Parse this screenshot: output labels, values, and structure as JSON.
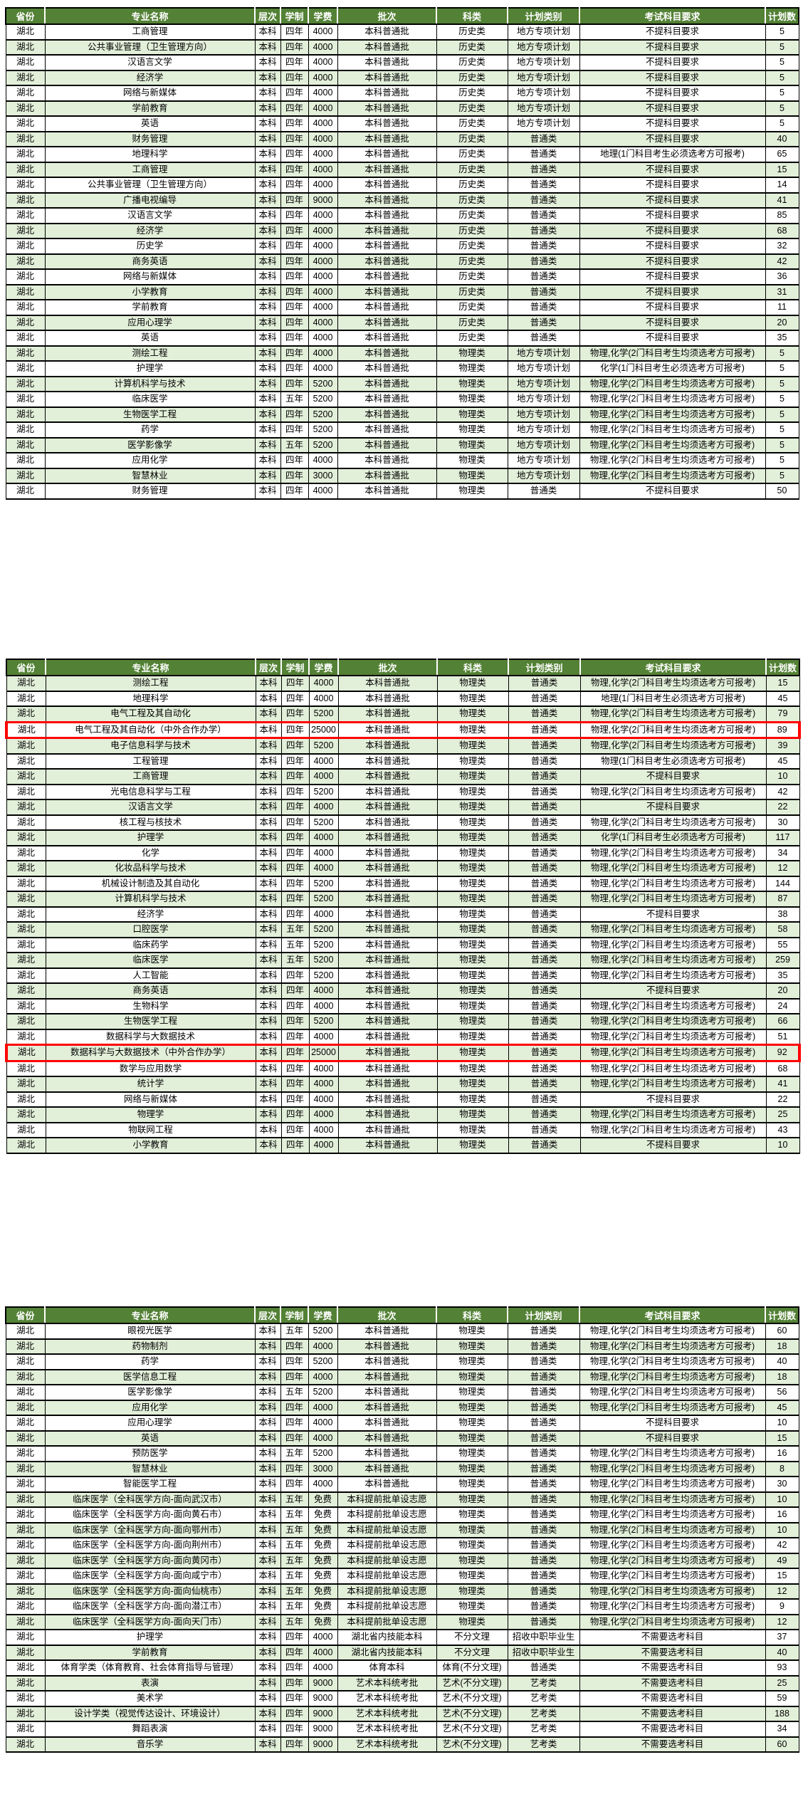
{
  "colors": {
    "header_bg": "#538135",
    "header_text": "#ffffff",
    "row_alt_bg": "#e2efd9",
    "row_bg": "#ffffff",
    "grid_border": "#000000",
    "highlight_box": "#ff0000"
  },
  "columns": [
    "省份",
    "专业名称",
    "层次",
    "学制",
    "学费",
    "批次",
    "科类",
    "计划类别",
    "考试科目要求",
    "计划数"
  ],
  "tables": [
    {
      "first_row_shade": "white",
      "highlight_rows": [],
      "rows": [
        [
          "湖北",
          "工商管理",
          "本科",
          "四年",
          "4000",
          "本科普通批",
          "历史类",
          "地方专项计划",
          "不提科目要求",
          "5"
        ],
        [
          "湖北",
          "公共事业管理（卫生管理方向）",
          "本科",
          "四年",
          "4000",
          "本科普通批",
          "历史类",
          "地方专项计划",
          "不提科目要求",
          "5"
        ],
        [
          "湖北",
          "汉语言文学",
          "本科",
          "四年",
          "4000",
          "本科普通批",
          "历史类",
          "地方专项计划",
          "不提科目要求",
          "5"
        ],
        [
          "湖北",
          "经济学",
          "本科",
          "四年",
          "4000",
          "本科普通批",
          "历史类",
          "地方专项计划",
          "不提科目要求",
          "5"
        ],
        [
          "湖北",
          "网络与新媒体",
          "本科",
          "四年",
          "4000",
          "本科普通批",
          "历史类",
          "地方专项计划",
          "不提科目要求",
          "5"
        ],
        [
          "湖北",
          "学前教育",
          "本科",
          "四年",
          "4000",
          "本科普通批",
          "历史类",
          "地方专项计划",
          "不提科目要求",
          "5"
        ],
        [
          "湖北",
          "英语",
          "本科",
          "四年",
          "4000",
          "本科普通批",
          "历史类",
          "地方专项计划",
          "不提科目要求",
          "5"
        ],
        [
          "湖北",
          "财务管理",
          "本科",
          "四年",
          "4000",
          "本科普通批",
          "历史类",
          "普通类",
          "不提科目要求",
          "40"
        ],
        [
          "湖北",
          "地理科学",
          "本科",
          "四年",
          "4000",
          "本科普通批",
          "历史类",
          "普通类",
          "地理(1门科目考生必须选考方可报考)",
          "65"
        ],
        [
          "湖北",
          "工商管理",
          "本科",
          "四年",
          "4000",
          "本科普通批",
          "历史类",
          "普通类",
          "不提科目要求",
          "15"
        ],
        [
          "湖北",
          "公共事业管理（卫生管理方向）",
          "本科",
          "四年",
          "4000",
          "本科普通批",
          "历史类",
          "普通类",
          "不提科目要求",
          "14"
        ],
        [
          "湖北",
          "广播电视编导",
          "本科",
          "四年",
          "9000",
          "本科普通批",
          "历史类",
          "普通类",
          "不提科目要求",
          "41"
        ],
        [
          "湖北",
          "汉语言文学",
          "本科",
          "四年",
          "4000",
          "本科普通批",
          "历史类",
          "普通类",
          "不提科目要求",
          "85"
        ],
        [
          "湖北",
          "经济学",
          "本科",
          "四年",
          "4000",
          "本科普通批",
          "历史类",
          "普通类",
          "不提科目要求",
          "68"
        ],
        [
          "湖北",
          "历史学",
          "本科",
          "四年",
          "4000",
          "本科普通批",
          "历史类",
          "普通类",
          "不提科目要求",
          "32"
        ],
        [
          "湖北",
          "商务英语",
          "本科",
          "四年",
          "4000",
          "本科普通批",
          "历史类",
          "普通类",
          "不提科目要求",
          "42"
        ],
        [
          "湖北",
          "网络与新媒体",
          "本科",
          "四年",
          "4000",
          "本科普通批",
          "历史类",
          "普通类",
          "不提科目要求",
          "36"
        ],
        [
          "湖北",
          "小学教育",
          "本科",
          "四年",
          "4000",
          "本科普通批",
          "历史类",
          "普通类",
          "不提科目要求",
          "31"
        ],
        [
          "湖北",
          "学前教育",
          "本科",
          "四年",
          "4000",
          "本科普通批",
          "历史类",
          "普通类",
          "不提科目要求",
          "11"
        ],
        [
          "湖北",
          "应用心理学",
          "本科",
          "四年",
          "4000",
          "本科普通批",
          "历史类",
          "普通类",
          "不提科目要求",
          "20"
        ],
        [
          "湖北",
          "英语",
          "本科",
          "四年",
          "4000",
          "本科普通批",
          "历史类",
          "普通类",
          "不提科目要求",
          "35"
        ],
        [
          "湖北",
          "测绘工程",
          "本科",
          "四年",
          "4000",
          "本科普通批",
          "物理类",
          "地方专项计划",
          "物理,化学(2门科目考生均须选考方可报考)",
          "5"
        ],
        [
          "湖北",
          "护理学",
          "本科",
          "四年",
          "4000",
          "本科普通批",
          "物理类",
          "地方专项计划",
          "化学(1门科目考生必须选考方可报考)",
          "5"
        ],
        [
          "湖北",
          "计算机科学与技术",
          "本科",
          "四年",
          "5200",
          "本科普通批",
          "物理类",
          "地方专项计划",
          "物理,化学(2门科目考生均须选考方可报考)",
          "5"
        ],
        [
          "湖北",
          "临床医学",
          "本科",
          "五年",
          "5200",
          "本科普通批",
          "物理类",
          "地方专项计划",
          "物理,化学(2门科目考生均须选考方可报考)",
          "5"
        ],
        [
          "湖北",
          "生物医学工程",
          "本科",
          "四年",
          "5200",
          "本科普通批",
          "物理类",
          "地方专项计划",
          "物理,化学(2门科目考生均须选考方可报考)",
          "5"
        ],
        [
          "湖北",
          "药学",
          "本科",
          "四年",
          "5200",
          "本科普通批",
          "物理类",
          "地方专项计划",
          "物理,化学(2门科目考生均须选考方可报考)",
          "5"
        ],
        [
          "湖北",
          "医学影像学",
          "本科",
          "五年",
          "5200",
          "本科普通批",
          "物理类",
          "地方专项计划",
          "物理,化学(2门科目考生均须选考方可报考)",
          "5"
        ],
        [
          "湖北",
          "应用化学",
          "本科",
          "四年",
          "4000",
          "本科普通批",
          "物理类",
          "地方专项计划",
          "物理,化学(2门科目考生均须选考方可报考)",
          "5"
        ],
        [
          "湖北",
          "智慧林业",
          "本科",
          "四年",
          "3000",
          "本科普通批",
          "物理类",
          "地方专项计划",
          "物理,化学(2门科目考生均须选考方可报考)",
          "5"
        ],
        [
          "湖北",
          "财务管理",
          "本科",
          "四年",
          "4000",
          "本科普通批",
          "物理类",
          "普通类",
          "不提科目要求",
          "50"
        ]
      ]
    },
    {
      "first_row_shade": "green",
      "highlight_rows": [
        3,
        24
      ],
      "rows": [
        [
          "湖北",
          "测绘工程",
          "本科",
          "四年",
          "4000",
          "本科普通批",
          "物理类",
          "普通类",
          "物理,化学(2门科目考生均须选考方可报考)",
          "15"
        ],
        [
          "湖北",
          "地理科学",
          "本科",
          "四年",
          "4000",
          "本科普通批",
          "物理类",
          "普通类",
          "地理(1门科目考生必须选考方可报考)",
          "45"
        ],
        [
          "湖北",
          "电气工程及其自动化",
          "本科",
          "四年",
          "5200",
          "本科普通批",
          "物理类",
          "普通类",
          "物理,化学(2门科目考生均须选考方可报考)",
          "79"
        ],
        [
          "湖北",
          "电气工程及其自动化（中外合作办学）",
          "本科",
          "四年",
          "25000",
          "本科普通批",
          "物理类",
          "普通类",
          "物理,化学(2门科目考生均须选考方可报考)",
          "89"
        ],
        [
          "湖北",
          "电子信息科学与技术",
          "本科",
          "四年",
          "5200",
          "本科普通批",
          "物理类",
          "普通类",
          "物理,化学(2门科目考生均须选考方可报考)",
          "39"
        ],
        [
          "湖北",
          "工程管理",
          "本科",
          "四年",
          "4000",
          "本科普通批",
          "物理类",
          "普通类",
          "物理(1门科目考生必须选考方可报考)",
          "45"
        ],
        [
          "湖北",
          "工商管理",
          "本科",
          "四年",
          "4000",
          "本科普通批",
          "物理类",
          "普通类",
          "不提科目要求",
          "10"
        ],
        [
          "湖北",
          "光电信息科学与工程",
          "本科",
          "四年",
          "5200",
          "本科普通批",
          "物理类",
          "普通类",
          "物理,化学(2门科目考生均须选考方可报考)",
          "42"
        ],
        [
          "湖北",
          "汉语言文学",
          "本科",
          "四年",
          "4000",
          "本科普通批",
          "物理类",
          "普通类",
          "不提科目要求",
          "22"
        ],
        [
          "湖北",
          "核工程与核技术",
          "本科",
          "四年",
          "5200",
          "本科普通批",
          "物理类",
          "普通类",
          "物理,化学(2门科目考生均须选考方可报考)",
          "30"
        ],
        [
          "湖北",
          "护理学",
          "本科",
          "四年",
          "4000",
          "本科普通批",
          "物理类",
          "普通类",
          "化学(1门科目考生必须选考方可报考)",
          "117"
        ],
        [
          "湖北",
          "化学",
          "本科",
          "四年",
          "4000",
          "本科普通批",
          "物理类",
          "普通类",
          "物理,化学(2门科目考生均须选考方可报考)",
          "34"
        ],
        [
          "湖北",
          "化妆品科学与技术",
          "本科",
          "四年",
          "4000",
          "本科普通批",
          "物理类",
          "普通类",
          "物理,化学(2门科目考生均须选考方可报考)",
          "12"
        ],
        [
          "湖北",
          "机械设计制造及其自动化",
          "本科",
          "四年",
          "5200",
          "本科普通批",
          "物理类",
          "普通类",
          "物理,化学(2门科目考生均须选考方可报考)",
          "144"
        ],
        [
          "湖北",
          "计算机科学与技术",
          "本科",
          "四年",
          "5200",
          "本科普通批",
          "物理类",
          "普通类",
          "物理,化学(2门科目考生均须选考方可报考)",
          "87"
        ],
        [
          "湖北",
          "经济学",
          "本科",
          "四年",
          "4000",
          "本科普通批",
          "物理类",
          "普通类",
          "不提科目要求",
          "38"
        ],
        [
          "湖北",
          "口腔医学",
          "本科",
          "五年",
          "5200",
          "本科普通批",
          "物理类",
          "普通类",
          "物理,化学(2门科目考生均须选考方可报考)",
          "58"
        ],
        [
          "湖北",
          "临床药学",
          "本科",
          "五年",
          "5200",
          "本科普通批",
          "物理类",
          "普通类",
          "物理,化学(2门科目考生均须选考方可报考)",
          "55"
        ],
        [
          "湖北",
          "临床医学",
          "本科",
          "五年",
          "5200",
          "本科普通批",
          "物理类",
          "普通类",
          "物理,化学(2门科目考生均须选考方可报考)",
          "259"
        ],
        [
          "湖北",
          "人工智能",
          "本科",
          "四年",
          "5200",
          "本科普通批",
          "物理类",
          "普通类",
          "物理,化学(2门科目考生均须选考方可报考)",
          "35"
        ],
        [
          "湖北",
          "商务英语",
          "本科",
          "四年",
          "4000",
          "本科普通批",
          "物理类",
          "普通类",
          "不提科目要求",
          "20"
        ],
        [
          "湖北",
          "生物科学",
          "本科",
          "四年",
          "4000",
          "本科普通批",
          "物理类",
          "普通类",
          "物理,化学(2门科目考生均须选考方可报考)",
          "24"
        ],
        [
          "湖北",
          "生物医学工程",
          "本科",
          "四年",
          "5200",
          "本科普通批",
          "物理类",
          "普通类",
          "物理,化学(2门科目考生均须选考方可报考)",
          "66"
        ],
        [
          "湖北",
          "数据科学与大数据技术",
          "本科",
          "四年",
          "4000",
          "本科普通批",
          "物理类",
          "普通类",
          "物理,化学(2门科目考生均须选考方可报考)",
          "51"
        ],
        [
          "湖北",
          "数据科学与大数据技术（中外合作办学）",
          "本科",
          "四年",
          "25000",
          "本科普通批",
          "物理类",
          "普通类",
          "物理,化学(2门科目考生均须选考方可报考)",
          "92"
        ],
        [
          "湖北",
          "数学与应用数学",
          "本科",
          "四年",
          "4000",
          "本科普通批",
          "物理类",
          "普通类",
          "物理,化学(2门科目考生均须选考方可报考)",
          "68"
        ],
        [
          "湖北",
          "统计学",
          "本科",
          "四年",
          "4000",
          "本科普通批",
          "物理类",
          "普通类",
          "物理,化学(2门科目考生均须选考方可报考)",
          "41"
        ],
        [
          "湖北",
          "网络与新媒体",
          "本科",
          "四年",
          "4000",
          "本科普通批",
          "物理类",
          "普通类",
          "不提科目要求",
          "22"
        ],
        [
          "湖北",
          "物理学",
          "本科",
          "四年",
          "4000",
          "本科普通批",
          "物理类",
          "普通类",
          "物理,化学(2门科目考生均须选考方可报考)",
          "25"
        ],
        [
          "湖北",
          "物联网工程",
          "本科",
          "四年",
          "4000",
          "本科普通批",
          "物理类",
          "普通类",
          "物理,化学(2门科目考生均须选考方可报考)",
          "43"
        ],
        [
          "湖北",
          "小学教育",
          "本科",
          "四年",
          "4000",
          "本科普通批",
          "物理类",
          "普通类",
          "不提科目要求",
          "10"
        ]
      ]
    },
    {
      "first_row_shade": "white",
      "highlight_rows": [],
      "rows": [
        [
          "湖北",
          "眼视光医学",
          "本科",
          "五年",
          "5200",
          "本科普通批",
          "物理类",
          "普通类",
          "物理,化学(2门科目考生均须选考方可报考)",
          "60"
        ],
        [
          "湖北",
          "药物制剂",
          "本科",
          "四年",
          "4000",
          "本科普通批",
          "物理类",
          "普通类",
          "物理,化学(2门科目考生均须选考方可报考)",
          "18"
        ],
        [
          "湖北",
          "药学",
          "本科",
          "四年",
          "5200",
          "本科普通批",
          "物理类",
          "普通类",
          "物理,化学(2门科目考生均须选考方可报考)",
          "40"
        ],
        [
          "湖北",
          "医学信息工程",
          "本科",
          "四年",
          "4000",
          "本科普通批",
          "物理类",
          "普通类",
          "物理,化学(2门科目考生均须选考方可报考)",
          "18"
        ],
        [
          "湖北",
          "医学影像学",
          "本科",
          "五年",
          "5200",
          "本科普通批",
          "物理类",
          "普通类",
          "物理,化学(2门科目考生均须选考方可报考)",
          "56"
        ],
        [
          "湖北",
          "应用化学",
          "本科",
          "四年",
          "4000",
          "本科普通批",
          "物理类",
          "普通类",
          "物理,化学(2门科目考生均须选考方可报考)",
          "45"
        ],
        [
          "湖北",
          "应用心理学",
          "本科",
          "四年",
          "4000",
          "本科普通批",
          "物理类",
          "普通类",
          "不提科目要求",
          "10"
        ],
        [
          "湖北",
          "英语",
          "本科",
          "四年",
          "4000",
          "本科普通批",
          "物理类",
          "普通类",
          "不提科目要求",
          "15"
        ],
        [
          "湖北",
          "预防医学",
          "本科",
          "五年",
          "5200",
          "本科普通批",
          "物理类",
          "普通类",
          "物理,化学(2门科目考生均须选考方可报考)",
          "16"
        ],
        [
          "湖北",
          "智慧林业",
          "本科",
          "四年",
          "3000",
          "本科普通批",
          "物理类",
          "普通类",
          "物理,化学(2门科目考生均须选考方可报考)",
          "8"
        ],
        [
          "湖北",
          "智能医学工程",
          "本科",
          "四年",
          "4000",
          "本科普通批",
          "物理类",
          "普通类",
          "物理,化学(2门科目考生均须选考方可报考)",
          "30"
        ],
        [
          "湖北",
          "临床医学（全科医学方向-面向武汉市）",
          "本科",
          "五年",
          "免费",
          "本科提前批单设志愿",
          "物理类",
          "普通类",
          "物理,化学(2门科目考生均须选考方可报考)",
          "10"
        ],
        [
          "湖北",
          "临床医学（全科医学方向-面向黄石市）",
          "本科",
          "五年",
          "免费",
          "本科提前批单设志愿",
          "物理类",
          "普通类",
          "物理,化学(2门科目考生均须选考方可报考)",
          "16"
        ],
        [
          "湖北",
          "临床医学（全科医学方向-面向鄂州市）",
          "本科",
          "五年",
          "免费",
          "本科提前批单设志愿",
          "物理类",
          "普通类",
          "物理,化学(2门科目考生均须选考方可报考)",
          "10"
        ],
        [
          "湖北",
          "临床医学（全科医学方向-面向荆州市）",
          "本科",
          "五年",
          "免费",
          "本科提前批单设志愿",
          "物理类",
          "普通类",
          "物理,化学(2门科目考生均须选考方可报考)",
          "42"
        ],
        [
          "湖北",
          "临床医学（全科医学方向-面向黄冈市）",
          "本科",
          "五年",
          "免费",
          "本科提前批单设志愿",
          "物理类",
          "普通类",
          "物理,化学(2门科目考生均须选考方可报考)",
          "49"
        ],
        [
          "湖北",
          "临床医学（全科医学方向-面向咸宁市）",
          "本科",
          "五年",
          "免费",
          "本科提前批单设志愿",
          "物理类",
          "普通类",
          "物理,化学(2门科目考生均须选考方可报考)",
          "15"
        ],
        [
          "湖北",
          "临床医学（全科医学方向-面向仙桃市）",
          "本科",
          "五年",
          "免费",
          "本科提前批单设志愿",
          "物理类",
          "普通类",
          "物理,化学(2门科目考生均须选考方可报考)",
          "12"
        ],
        [
          "湖北",
          "临床医学（全科医学方向-面向潜江市）",
          "本科",
          "五年",
          "免费",
          "本科提前批单设志愿",
          "物理类",
          "普通类",
          "物理,化学(2门科目考生均须选考方可报考)",
          "9"
        ],
        [
          "湖北",
          "临床医学（全科医学方向-面向天门市）",
          "本科",
          "五年",
          "免费",
          "本科提前批单设志愿",
          "物理类",
          "普通类",
          "物理,化学(2门科目考生均须选考方可报考)",
          "12"
        ],
        [
          "湖北",
          "护理学",
          "本科",
          "四年",
          "4000",
          "湖北省内技能本科",
          "不分文理",
          "招收中职毕业生",
          "不需要选考科目",
          "37"
        ],
        [
          "湖北",
          "学前教育",
          "本科",
          "四年",
          "4000",
          "湖北省内技能本科",
          "不分文理",
          "招收中职毕业生",
          "不需要选考科目",
          "40"
        ],
        [
          "湖北",
          "体育学类（体育教育、社会体育指导与管理）",
          "本科",
          "四年",
          "4000",
          "体育本科",
          "体育(不分文理)",
          "普通类",
          "不需要选考科目",
          "93"
        ],
        [
          "湖北",
          "表演",
          "本科",
          "四年",
          "9000",
          "艺术本科统考批",
          "艺术(不分文理)",
          "艺考类",
          "不需要选考科目",
          "25"
        ],
        [
          "湖北",
          "美术学",
          "本科",
          "四年",
          "9000",
          "艺术本科统考批",
          "艺术(不分文理)",
          "艺考类",
          "不需要选考科目",
          "59"
        ],
        [
          "湖北",
          "设计学类（视觉传达设计、环境设计）",
          "本科",
          "四年",
          "9000",
          "艺术本科统考批",
          "艺术(不分文理)",
          "艺考类",
          "不需要选考科目",
          "188"
        ],
        [
          "湖北",
          "舞蹈表演",
          "本科",
          "四年",
          "9000",
          "艺术本科统考批",
          "艺术(不分文理)",
          "艺考类",
          "不需要选考科目",
          "34"
        ],
        [
          "湖北",
          "音乐学",
          "本科",
          "四年",
          "9000",
          "艺术本科统考批",
          "艺术(不分文理)",
          "艺考类",
          "不需要选考科目",
          "60"
        ]
      ]
    }
  ]
}
